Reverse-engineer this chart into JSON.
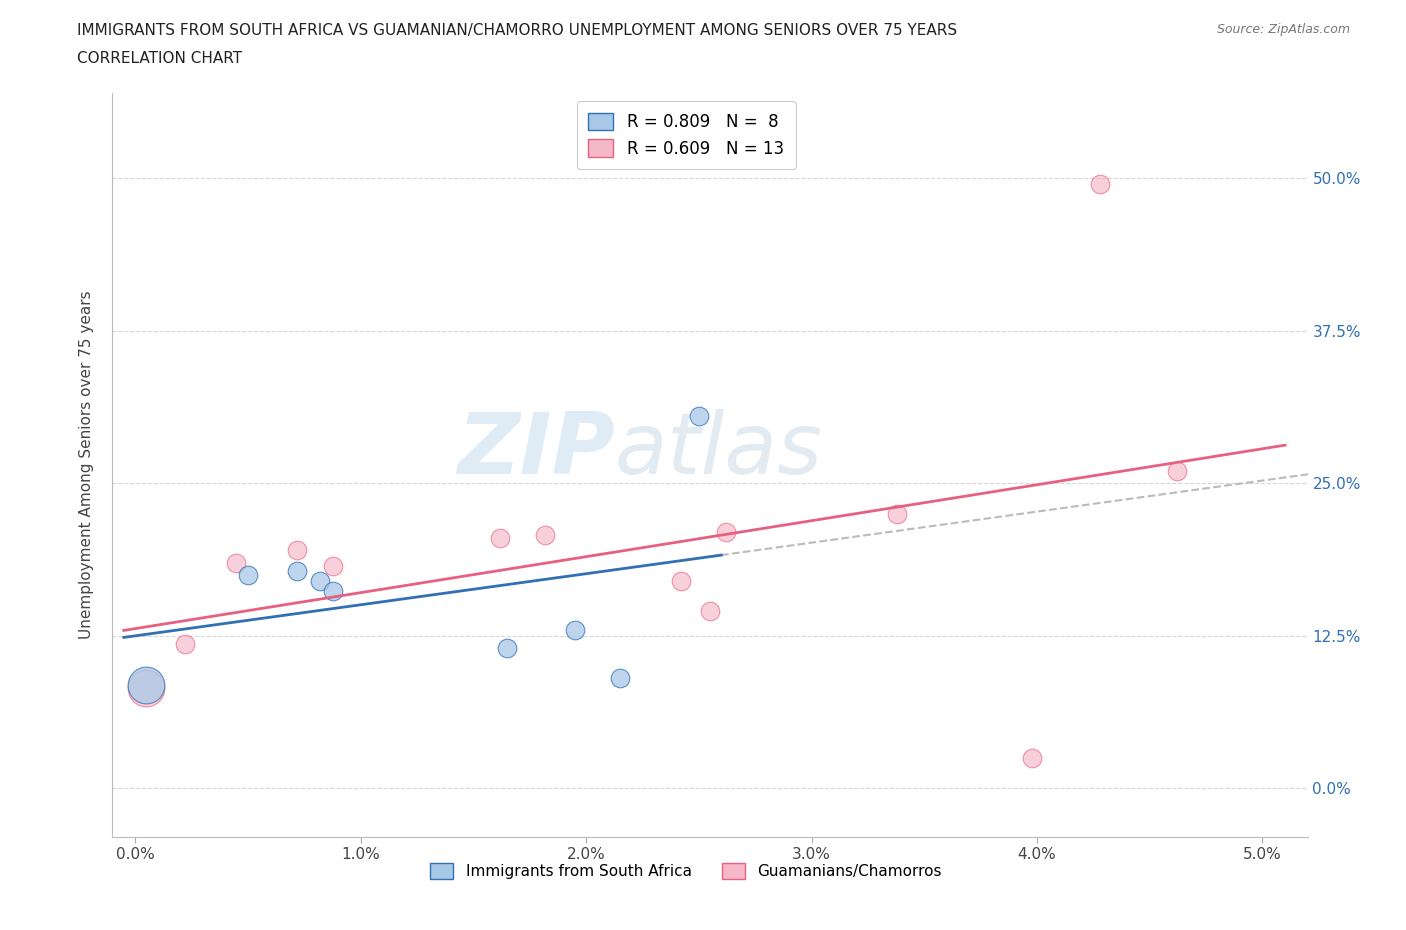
{
  "title_line1": "IMMIGRANTS FROM SOUTH AFRICA VS GUAMANIAN/CHAMORRO UNEMPLOYMENT AMONG SENIORS OVER 75 YEARS",
  "title_line2": "CORRELATION CHART",
  "source": "Source: ZipAtlas.com",
  "xlabel": "",
  "ylabel": "Unemployment Among Seniors over 75 years",
  "x_tick_positions": [
    0.0,
    1.0,
    2.0,
    3.0,
    4.0,
    5.0
  ],
  "x_tick_labels": [
    "0.0%",
    "1.0%",
    "2.0%",
    "3.0%",
    "4.0%",
    "5.0%"
  ],
  "y_tick_positions": [
    0.0,
    12.5,
    25.0,
    37.5,
    50.0
  ],
  "y_tick_labels": [
    "0.0%",
    "12.5%",
    "25.0%",
    "37.5%",
    "50.0%"
  ],
  "xlim": [
    -0.1,
    5.2
  ],
  "ylim": [
    -4.0,
    57.0
  ],
  "blue_points": [
    [
      0.05,
      8.5
    ],
    [
      0.5,
      17.5
    ],
    [
      0.72,
      17.8
    ],
    [
      0.82,
      17.0
    ],
    [
      0.88,
      16.2
    ],
    [
      1.65,
      11.5
    ],
    [
      1.95,
      13.0
    ],
    [
      2.15,
      9.0
    ],
    [
      2.5,
      30.5
    ]
  ],
  "pink_points": [
    [
      0.05,
      8.2
    ],
    [
      0.22,
      11.8
    ],
    [
      0.45,
      18.5
    ],
    [
      0.72,
      19.5
    ],
    [
      0.88,
      18.2
    ],
    [
      1.62,
      20.5
    ],
    [
      1.82,
      20.8
    ],
    [
      2.42,
      17.0
    ],
    [
      2.55,
      14.5
    ],
    [
      2.62,
      21.0
    ],
    [
      3.38,
      22.5
    ],
    [
      3.98,
      2.5
    ],
    [
      4.28,
      49.5
    ],
    [
      4.62,
      26.0
    ]
  ],
  "blue_marker_size_default": 180,
  "blue_marker_size_large": 700,
  "pink_marker_size_default": 180,
  "pink_marker_size_large": 700,
  "large_blue_index": -1,
  "large_pink_index": 0,
  "blue_R": 0.809,
  "blue_N": 8,
  "pink_R": 0.609,
  "pink_N": 13,
  "blue_color": "#a8c8e8",
  "pink_color": "#f5b8c8",
  "blue_line_color": "#3070b3",
  "pink_line_color": "#e86080",
  "grid_color": "#cccccc",
  "background_color": "#ffffff",
  "watermark_text": "ZIP",
  "watermark_text2": "atlas",
  "watermark_color1": "#c8dff0",
  "watermark_color2": "#b8d4e8"
}
